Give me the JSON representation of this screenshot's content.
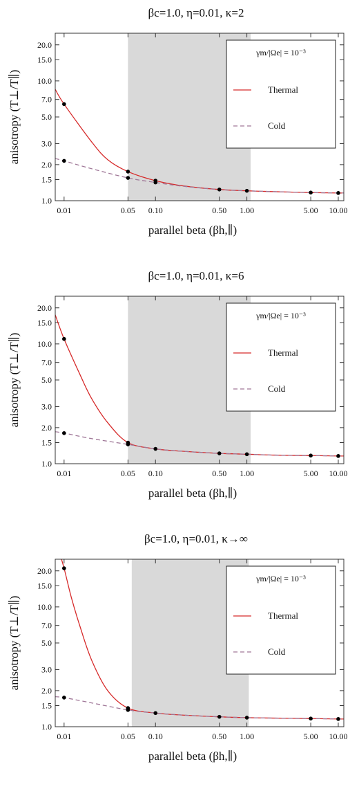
{
  "chart_data": [
    {
      "type": "line",
      "title": "βc=1.0, η=0.01, κ=2",
      "xlabel": "parallel beta (βh,∥)",
      "ylabel": "anisotropy (T⊥/T∥)",
      "xscale": "log",
      "yscale": "log",
      "xlim": [
        0.008,
        11.5
      ],
      "ylim": [
        1.0,
        25.0
      ],
      "xticks": [
        0.01,
        0.05,
        0.1,
        0.5,
        1.0,
        5.0,
        10.0
      ],
      "xtick_labels": [
        "0.01",
        "0.05",
        "0.10",
        "0.50",
        "1.00",
        "5.00",
        "10.00"
      ],
      "yticks": [
        1.0,
        1.5,
        2.0,
        3.0,
        5.0,
        7.0,
        10.0,
        15.0,
        20.0
      ],
      "ytick_labels": [
        "1.0",
        "1.5",
        "2.0",
        "3.0",
        "5.0",
        "7.0",
        "10.0",
        "15.0",
        "20.0"
      ],
      "shaded_region": [
        0.05,
        1.1
      ],
      "legend": {
        "header": "γm/|Ωe| = 10⁻³",
        "entries": [
          "Thermal",
          "Cold"
        ],
        "placement": "top-right"
      },
      "series": [
        {
          "name": "Thermal",
          "color": "#d62a2a",
          "style": "solid",
          "x": [
            0.008,
            0.01,
            0.02,
            0.03,
            0.05,
            0.1,
            0.2,
            0.5,
            1.0,
            2.0,
            5.0,
            10.0,
            11.5
          ],
          "y": [
            8.5,
            6.4,
            3.1,
            2.2,
            1.75,
            1.47,
            1.33,
            1.24,
            1.21,
            1.19,
            1.17,
            1.16,
            1.16
          ]
        },
        {
          "name": "Cold",
          "color": "#a07898",
          "style": "dashed",
          "x": [
            0.008,
            0.01,
            0.02,
            0.05,
            0.1,
            0.2,
            0.5,
            1.0,
            2.0,
            5.0,
            10.0,
            11.5
          ],
          "y": [
            2.25,
            2.15,
            1.85,
            1.55,
            1.42,
            1.32,
            1.24,
            1.21,
            1.19,
            1.17,
            1.16,
            1.16
          ]
        }
      ],
      "points": {
        "x": [
          0.01,
          0.01,
          0.05,
          0.05,
          0.1,
          0.1,
          0.5,
          1.0,
          5.0,
          10.0
        ],
        "y": [
          6.4,
          2.15,
          1.75,
          1.55,
          1.47,
          1.42,
          1.24,
          1.21,
          1.17,
          1.16
        ]
      }
    },
    {
      "type": "line",
      "title": "βc=1.0, η=0.01, κ=6",
      "xlabel": "parallel beta (βh,∥)",
      "ylabel": "anisotropy (T⊥/T∥)",
      "xscale": "log",
      "yscale": "log",
      "xlim": [
        0.008,
        11.5
      ],
      "ylim": [
        1.0,
        25.0
      ],
      "xticks": [
        0.01,
        0.05,
        0.1,
        0.5,
        1.0,
        5.0,
        10.0
      ],
      "xtick_labels": [
        "0.01",
        "0.05",
        "0.10",
        "0.50",
        "1.00",
        "5.00",
        "10.00"
      ],
      "yticks": [
        1.0,
        1.5,
        2.0,
        3.0,
        5.0,
        7.0,
        10.0,
        15.0,
        20.0
      ],
      "ytick_labels": [
        "1.0",
        "1.5",
        "2.0",
        "3.0",
        "5.0",
        "7.0",
        "10.0",
        "15.0",
        "20.0"
      ],
      "shaded_region": [
        0.05,
        1.1
      ],
      "legend": {
        "header": "γm/|Ωe| = 10⁻³",
        "entries": [
          "Thermal",
          "Cold"
        ],
        "placement": "top-right"
      },
      "series": [
        {
          "name": "Thermal",
          "color": "#d62a2a",
          "style": "solid",
          "x": [
            0.008,
            0.01,
            0.015,
            0.02,
            0.03,
            0.05,
            0.1,
            0.2,
            0.5,
            1.0,
            2.0,
            5.0,
            10.0,
            11.5
          ],
          "y": [
            17.5,
            11.0,
            5.5,
            3.5,
            2.2,
            1.5,
            1.33,
            1.27,
            1.22,
            1.2,
            1.18,
            1.17,
            1.16,
            1.16
          ]
        },
        {
          "name": "Cold",
          "color": "#a07898",
          "style": "dashed",
          "x": [
            0.008,
            0.01,
            0.02,
            0.05,
            0.1,
            0.2,
            0.5,
            1.0,
            2.0,
            5.0,
            10.0,
            11.5
          ],
          "y": [
            1.85,
            1.8,
            1.62,
            1.45,
            1.33,
            1.27,
            1.22,
            1.2,
            1.18,
            1.17,
            1.16,
            1.16
          ]
        }
      ],
      "points": {
        "x": [
          0.01,
          0.01,
          0.05,
          0.05,
          0.1,
          0.5,
          1.0,
          5.0,
          10.0
        ],
        "y": [
          11.0,
          1.8,
          1.5,
          1.45,
          1.33,
          1.22,
          1.2,
          1.17,
          1.16
        ]
      }
    },
    {
      "type": "line",
      "title": "βc=1.0, η=0.01, κ→∞",
      "xlabel": "parallel beta (βh,∥)",
      "ylabel": "anisotropy (T⊥/T∥)",
      "xscale": "log",
      "yscale": "log",
      "xlim": [
        0.008,
        11.5
      ],
      "ylim": [
        1.0,
        25.0
      ],
      "xticks": [
        0.01,
        0.05,
        0.1,
        0.5,
        1.0,
        5.0,
        10.0
      ],
      "xtick_labels": [
        "0.01",
        "0.05",
        "0.10",
        "0.50",
        "1.00",
        "5.00",
        "10.00"
      ],
      "yticks": [
        1.0,
        1.5,
        2.0,
        3.0,
        5.0,
        7.0,
        10.0,
        15.0,
        20.0
      ],
      "ytick_labels": [
        "1.0",
        "1.5",
        "2.0",
        "3.0",
        "5.0",
        "7.0",
        "10.0",
        "15.0",
        "20.0"
      ],
      "shaded_region": [
        0.055,
        1.05
      ],
      "legend": {
        "header": "γm/|Ωe| = 10⁻³",
        "entries": [
          "Thermal",
          "Cold"
        ],
        "placement": "top-right"
      },
      "series": [
        {
          "name": "Thermal",
          "color": "#d62a2a",
          "style": "solid",
          "x": [
            0.0087,
            0.01,
            0.012,
            0.015,
            0.02,
            0.03,
            0.05,
            0.1,
            0.2,
            0.5,
            1.0,
            2.0,
            5.0,
            10.0,
            11.5
          ],
          "y": [
            30.0,
            21.0,
            12.0,
            6.8,
            3.6,
            2.0,
            1.43,
            1.3,
            1.25,
            1.21,
            1.19,
            1.18,
            1.17,
            1.16,
            1.16
          ]
        },
        {
          "name": "Cold",
          "color": "#a07898",
          "style": "dashed",
          "x": [
            0.008,
            0.01,
            0.02,
            0.05,
            0.1,
            0.2,
            0.5,
            1.0,
            2.0,
            5.0,
            10.0,
            11.5
          ],
          "y": [
            1.78,
            1.75,
            1.58,
            1.38,
            1.3,
            1.25,
            1.21,
            1.19,
            1.18,
            1.17,
            1.16,
            1.16
          ]
        }
      ],
      "points": {
        "x": [
          0.01,
          0.01,
          0.05,
          0.05,
          0.1,
          0.5,
          1.0,
          5.0,
          10.0
        ],
        "y": [
          21.0,
          1.75,
          1.43,
          1.38,
          1.3,
          1.21,
          1.19,
          1.17,
          1.16
        ]
      }
    }
  ]
}
